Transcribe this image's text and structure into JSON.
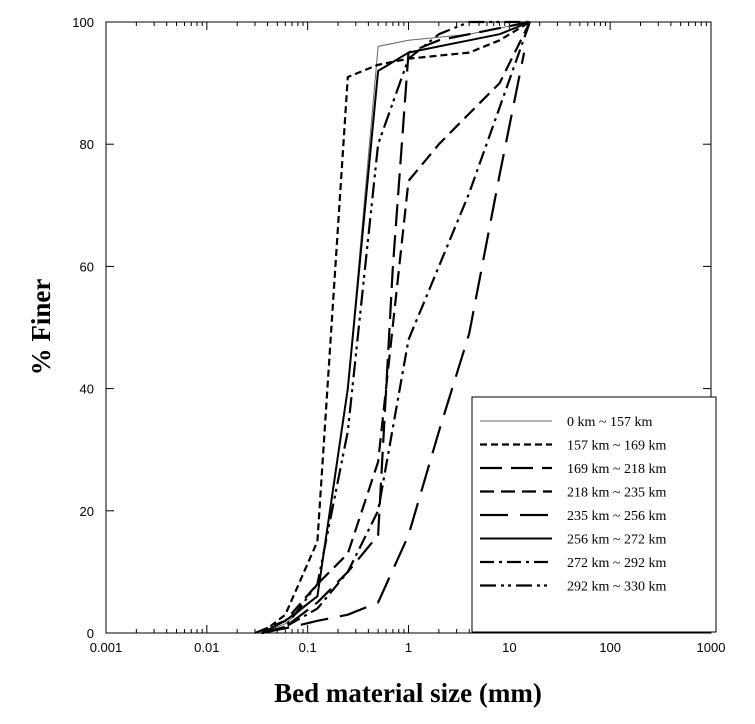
{
  "chart_data": {
    "type": "line",
    "title": "",
    "xlabel": "Bed material size (mm)",
    "ylabel": "% Finer",
    "xscale": "log",
    "xlim": [
      0.001,
      1000
    ],
    "ylim": [
      0,
      100
    ],
    "xticks": [
      0.001,
      0.01,
      0.1,
      1,
      10,
      100,
      1000
    ],
    "xtick_labels": [
      "0.001",
      "0.01",
      "0.1",
      "1",
      "10",
      "100",
      "1000"
    ],
    "yticks": [
      0,
      20,
      40,
      60,
      80,
      100
    ],
    "ytick_labels": [
      "0",
      "20",
      "40",
      "60",
      "80",
      "100"
    ],
    "grid": false,
    "legend_position": "bottom-right",
    "series": [
      {
        "name": "0 km ~ 157 km",
        "style": "solid-thin",
        "x": [
          0.035,
          0.06,
          0.125,
          0.25,
          0.5,
          1,
          2,
          4,
          8,
          16
        ],
        "y": [
          0,
          1.5,
          6,
          40,
          96,
          97,
          97.5,
          98,
          99,
          100
        ]
      },
      {
        "name": "157 km ~ 169 km",
        "style": "dash-short",
        "x": [
          0.035,
          0.06,
          0.125,
          0.25,
          0.5,
          1,
          2,
          4,
          8,
          16
        ],
        "y": [
          0,
          3,
          15,
          91,
          93,
          94,
          94.5,
          95,
          97,
          100
        ]
      },
      {
        "name": "169 km ~ 218 km",
        "style": "dash-long",
        "x": [
          0.035,
          0.06,
          0.125,
          0.25,
          0.5,
          0.7,
          1,
          2,
          4,
          8,
          16
        ],
        "y": [
          0,
          1,
          5,
          10,
          16,
          60,
          95,
          97,
          98,
          99,
          100
        ]
      },
      {
        "name": "218 km ~ 235 km",
        "style": "dash-medium",
        "x": [
          0.03,
          0.06,
          0.125,
          0.25,
          0.5,
          1,
          2,
          4,
          8,
          16
        ],
        "y": [
          0,
          2,
          8,
          13,
          28,
          74,
          80,
          85,
          90,
          100
        ]
      },
      {
        "name": "235 km ~ 256 km",
        "style": "dash-xlong",
        "x": [
          0.035,
          0.07,
          0.125,
          0.25,
          0.5,
          1,
          2,
          4,
          8,
          14
        ],
        "y": [
          0,
          1,
          2,
          3,
          5,
          16,
          33,
          49,
          75,
          95
        ]
      },
      {
        "name": "256 km ~ 272 km",
        "style": "solid",
        "x": [
          0.035,
          0.06,
          0.125,
          0.25,
          0.5,
          1,
          2,
          4,
          8,
          16
        ],
        "y": [
          0,
          2,
          6,
          40,
          92,
          95,
          96,
          97,
          98,
          100
        ]
      },
      {
        "name": "272 km ~ 292 km",
        "style": "dash-dot",
        "x": [
          0.035,
          0.06,
          0.125,
          0.25,
          0.5,
          1,
          2,
          4,
          8,
          16
        ],
        "y": [
          0,
          1,
          4,
          10,
          20,
          48,
          60,
          72,
          86,
          100
        ]
      },
      {
        "name": "292 km ~ 330 km",
        "style": "dash-dot-dot",
        "x": [
          0.035,
          0.06,
          0.125,
          0.25,
          0.5,
          1,
          2,
          4,
          8,
          16
        ],
        "y": [
          0,
          1,
          8,
          33,
          80,
          94,
          98,
          100,
          100,
          100
        ]
      }
    ]
  }
}
